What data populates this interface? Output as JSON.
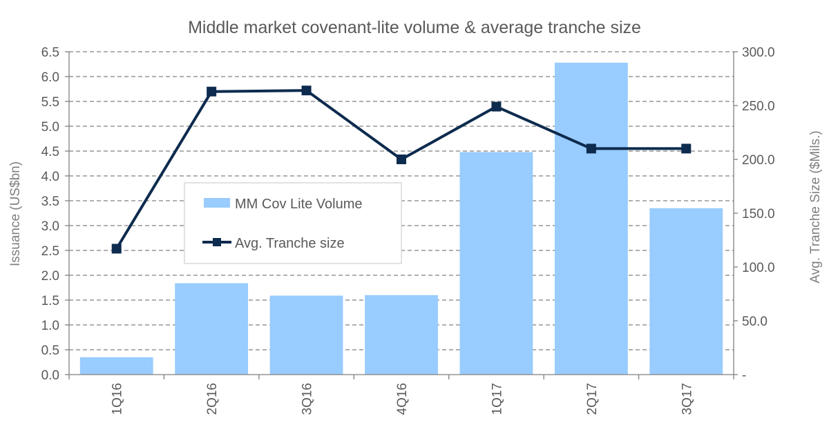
{
  "chart_data": {
    "type": "bar+line",
    "title": "Middle market covenant-lite volume & average tranche size",
    "categories": [
      "1Q16",
      "2Q16",
      "3Q16",
      "4Q16",
      "1Q17",
      "2Q17",
      "3Q17"
    ],
    "series": [
      {
        "name": "MM Cov Lite Volume",
        "type": "bar",
        "axis": "left",
        "color": "#99ccff",
        "values": [
          0.35,
          1.84,
          1.59,
          1.6,
          4.48,
          6.28,
          3.35
        ]
      },
      {
        "name": "Avg. Tranche size",
        "type": "line",
        "axis": "right",
        "color": "#0d2b4e",
        "values": [
          117,
          263,
          264,
          200,
          249,
          210,
          210
        ]
      }
    ],
    "y_left": {
      "label": "Issuance (US$bn)",
      "range": [
        0,
        6.5
      ],
      "ticks": [
        "0.0",
        "0.5",
        "1.0",
        "1.5",
        "2.0",
        "2.5",
        "3.0",
        "3.5",
        "4.0",
        "4.5",
        "5.0",
        "5.5",
        "6.0",
        "6.5"
      ]
    },
    "y_right": {
      "label": "Avg. Tranche Size ($Mils.)",
      "range": [
        0,
        300
      ],
      "ticks": [
        "-",
        "50.0",
        "100.0",
        "150.0",
        "200.0",
        "250.0",
        "300.0"
      ]
    },
    "grid": "horizontal-dashed",
    "legend": {
      "placement": "center-left",
      "entries": [
        "MM Cov Lite Volume",
        "Avg. Tranche size"
      ]
    }
  }
}
